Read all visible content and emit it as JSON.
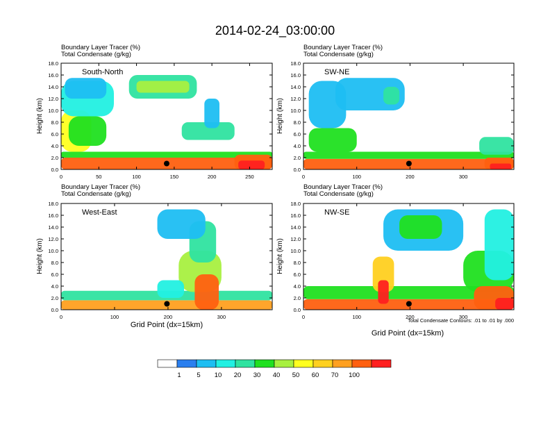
{
  "title": "2014-02-24_03:00:00",
  "colors": {
    "axis": "#000000",
    "contour": "#000000",
    "background": "#ffffff"
  },
  "legend": {
    "colors": [
      "#ffffff",
      "#2a7fef",
      "#1ebef2",
      "#22f0e2",
      "#2fe3a0",
      "#20e020",
      "#a8f040",
      "#ffff20",
      "#ffd020",
      "#ffa020",
      "#ff6010",
      "#ff2020"
    ],
    "labels": [
      "1",
      "5",
      "10",
      "20",
      "30",
      "40",
      "50",
      "60",
      "70",
      "100"
    ]
  },
  "footer": {
    "contour_note": "Total Condensate Contours: .01 to .01 by .000",
    "xlabel": "Grid Point (dx=15km)"
  },
  "chart_data": [
    {
      "type": "heatmap",
      "name": "South-North",
      "subtitle1": "Boundary Layer Tracer   (%)",
      "subtitle2": "Total Condensate   (g/kg)",
      "ylabel": "Height (km)",
      "xlabel": "",
      "xlim": [
        0,
        280
      ],
      "ylim": [
        0,
        18
      ],
      "xticks": [
        "0",
        "50",
        "100",
        "150",
        "200",
        "250"
      ],
      "xtick_values": [
        0,
        50,
        100,
        150,
        200,
        250
      ],
      "yticks": [
        "0.0",
        "2.0",
        "4.0",
        "6.0",
        "8.0",
        "10.0",
        "12.0",
        "14.0",
        "16.0",
        "18.0"
      ],
      "marker": [
        140,
        1.0
      ],
      "blobs": [
        {
          "x": [
            0,
            280
          ],
          "y": [
            0,
            2.0
          ],
          "level": 10
        },
        {
          "x": [
            0,
            280
          ],
          "y": [
            2.0,
            3.0
          ],
          "level": 5
        },
        {
          "x": [
            0,
            40
          ],
          "y": [
            3,
            10
          ],
          "level": 7
        },
        {
          "x": [
            10,
            60
          ],
          "y": [
            4,
            9
          ],
          "level": 5
        },
        {
          "x": [
            0,
            70
          ],
          "y": [
            9,
            15
          ],
          "level": 3
        },
        {
          "x": [
            5,
            60
          ],
          "y": [
            12,
            15.5
          ],
          "level": 2
        },
        {
          "x": [
            90,
            180
          ],
          "y": [
            12,
            16
          ],
          "level": 4
        },
        {
          "x": [
            100,
            170
          ],
          "y": [
            13,
            15
          ],
          "level": 6
        },
        {
          "x": [
            160,
            230
          ],
          "y": [
            5,
            8
          ],
          "level": 4
        },
        {
          "x": [
            190,
            210
          ],
          "y": [
            7,
            12
          ],
          "level": 2
        },
        {
          "x": [
            230,
            280
          ],
          "y": [
            0,
            2.5
          ],
          "level": 10
        },
        {
          "x": [
            235,
            270
          ],
          "y": [
            0,
            1.5
          ],
          "level": 11
        }
      ]
    },
    {
      "type": "heatmap",
      "name": "SW-NE",
      "subtitle1": "Boundary Layer Tracer   (%)",
      "subtitle2": "Total Condensate   (g/kg)",
      "ylabel": "Height (km)",
      "xlabel": "",
      "xlim": [
        0,
        395
      ],
      "ylim": [
        0,
        18
      ],
      "xticks": [
        "0",
        "100",
        "200",
        "300"
      ],
      "xtick_values": [
        0,
        100,
        200,
        300
      ],
      "yticks": [
        "0.0",
        "2.0",
        "4.0",
        "6.0",
        "8.0",
        "10.0",
        "12.0",
        "14.0",
        "16.0",
        "18.0"
      ],
      "marker": [
        198,
        1.0
      ],
      "blobs": [
        {
          "x": [
            0,
            395
          ],
          "y": [
            0,
            1.8
          ],
          "level": 10
        },
        {
          "x": [
            0,
            395
          ],
          "y": [
            1.8,
            3.0
          ],
          "level": 5
        },
        {
          "x": [
            10,
            100
          ],
          "y": [
            3,
            7
          ],
          "level": 5
        },
        {
          "x": [
            10,
            80
          ],
          "y": [
            7,
            15
          ],
          "level": 2
        },
        {
          "x": [
            60,
            190
          ],
          "y": [
            10,
            15.5
          ],
          "level": 2
        },
        {
          "x": [
            150,
            180
          ],
          "y": [
            11,
            14
          ],
          "level": 4
        },
        {
          "x": [
            330,
            395
          ],
          "y": [
            2.5,
            5.5
          ],
          "level": 4
        },
        {
          "x": [
            340,
            395
          ],
          "y": [
            0,
            2
          ],
          "level": 10
        },
        {
          "x": [
            350,
            390
          ],
          "y": [
            0,
            1
          ],
          "level": 11
        }
      ]
    },
    {
      "type": "heatmap",
      "name": "West-East",
      "subtitle1": "Boundary Layer Tracer   (%)",
      "subtitle2": "Total Condensate   (g/kg)",
      "ylabel": "Height (km)",
      "xlabel": "Grid Point (dx=15km)",
      "xlim": [
        0,
        395
      ],
      "ylim": [
        0,
        18
      ],
      "xticks": [
        "0",
        "100",
        "200",
        "300"
      ],
      "xtick_values": [
        0,
        100,
        200,
        300
      ],
      "yticks": [
        "0.0",
        "2.0",
        "4.0",
        "6.0",
        "8.0",
        "10.0",
        "12.0",
        "14.0",
        "16.0",
        "18.0"
      ],
      "marker": [
        198,
        1.0
      ],
      "blobs": [
        {
          "x": [
            0,
            395
          ],
          "y": [
            0,
            1.6
          ],
          "level": 9
        },
        {
          "x": [
            0,
            395
          ],
          "y": [
            1.6,
            3.2
          ],
          "level": 4
        },
        {
          "x": [
            220,
            300
          ],
          "y": [
            3,
            10
          ],
          "level": 6
        },
        {
          "x": [
            240,
            290
          ],
          "y": [
            8,
            15
          ],
          "level": 4
        },
        {
          "x": [
            180,
            270
          ],
          "y": [
            12,
            17
          ],
          "level": 2
        },
        {
          "x": [
            250,
            295
          ],
          "y": [
            0,
            6
          ],
          "level": 10
        },
        {
          "x": [
            180,
            230
          ],
          "y": [
            2,
            5
          ],
          "level": 3
        }
      ]
    },
    {
      "type": "heatmap",
      "name": "NW-SE",
      "subtitle1": "Boundary Layer Tracer   (%)",
      "subtitle2": "Total Condensate   (g/kg)",
      "ylabel": "Height (km)",
      "xlabel": "Grid Point (dx=15km)",
      "xlim": [
        0,
        395
      ],
      "ylim": [
        0,
        18
      ],
      "xticks": [
        "0",
        "100",
        "200",
        "300"
      ],
      "xtick_values": [
        0,
        100,
        200,
        300
      ],
      "yticks": [
        "0.0",
        "2.0",
        "4.0",
        "6.0",
        "8.0",
        "10.0",
        "12.0",
        "14.0",
        "16.0",
        "18.0"
      ],
      "marker": [
        198,
        1.0
      ],
      "blobs": [
        {
          "x": [
            0,
            395
          ],
          "y": [
            0,
            1.8
          ],
          "level": 10
        },
        {
          "x": [
            0,
            395
          ],
          "y": [
            1.8,
            4.0
          ],
          "level": 5
        },
        {
          "x": [
            130,
            170
          ],
          "y": [
            3,
            9
          ],
          "level": 8
        },
        {
          "x": [
            140,
            160
          ],
          "y": [
            1,
            5
          ],
          "level": 11
        },
        {
          "x": [
            150,
            300
          ],
          "y": [
            10,
            17
          ],
          "level": 2
        },
        {
          "x": [
            180,
            260
          ],
          "y": [
            12,
            16
          ],
          "level": 5
        },
        {
          "x": [
            300,
            395
          ],
          "y": [
            3,
            10
          ],
          "level": 5
        },
        {
          "x": [
            340,
            395
          ],
          "y": [
            5,
            17
          ],
          "level": 3
        },
        {
          "x": [
            320,
            395
          ],
          "y": [
            0,
            4
          ],
          "level": 10
        },
        {
          "x": [
            360,
            395
          ],
          "y": [
            0,
            2
          ],
          "level": 11
        }
      ]
    }
  ]
}
